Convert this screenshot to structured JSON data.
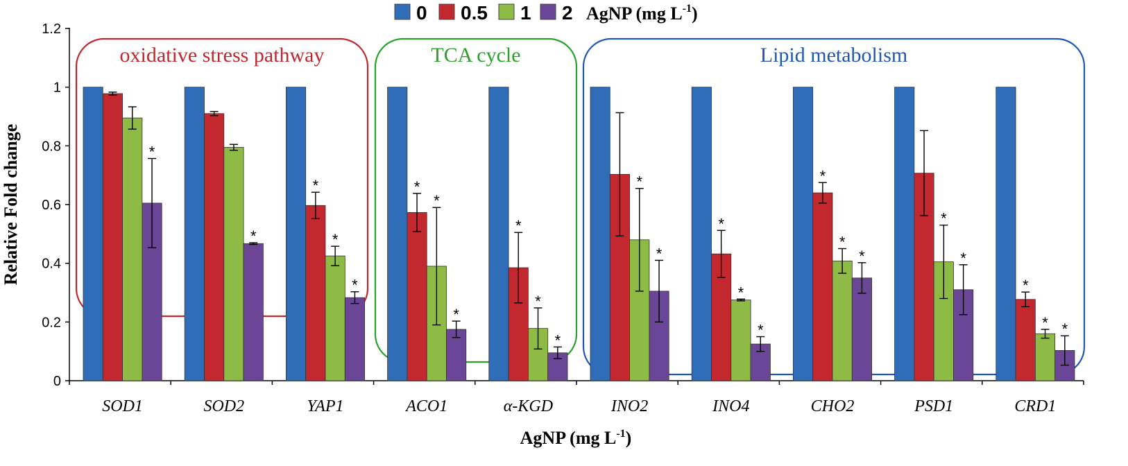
{
  "chart_data": {
    "type": "bar",
    "title": "",
    "xlabel": "AgNP (mg L-1)",
    "ylabel": "Relative Fold change",
    "ylim": [
      0,
      1.2
    ],
    "yticks": [
      "0",
      "0.2",
      "0.4",
      "0.6",
      "0.8",
      "1",
      "1.2"
    ],
    "categories": [
      "SOD1",
      "SOD2",
      "YAP1",
      "ACO1",
      "α-KGD",
      "INO2",
      "INO4",
      "CHO2",
      "PSD1",
      "CRD1"
    ],
    "legend": {
      "entries": [
        "0",
        "0.5",
        "1",
        "2"
      ],
      "unit_label": "AgNP (mg L",
      "unit_sup": "-1",
      "unit_close": ")",
      "placement": "top-center"
    },
    "series": [
      {
        "name": "0",
        "color": "#2f6db8",
        "values": [
          1,
          1,
          1,
          1,
          1,
          1,
          1,
          1,
          1,
          1
        ],
        "errors": [
          0,
          0,
          0,
          0,
          0,
          0,
          0,
          0,
          0,
          0
        ],
        "significant": [
          false,
          false,
          false,
          false,
          false,
          false,
          false,
          false,
          false,
          false
        ]
      },
      {
        "name": "0.5",
        "color": "#c3282e",
        "values": [
          0.978,
          0.91,
          0.597,
          0.573,
          0.385,
          0.703,
          0.432,
          0.64,
          0.707,
          0.277
        ],
        "errors": [
          0.005,
          0.007,
          0.045,
          0.065,
          0.12,
          0.21,
          0.08,
          0.035,
          0.145,
          0.025
        ],
        "significant": [
          false,
          false,
          true,
          true,
          true,
          false,
          true,
          true,
          false,
          true
        ]
      },
      {
        "name": "1",
        "color": "#8dbb45",
        "values": [
          0.895,
          0.795,
          0.425,
          0.39,
          0.178,
          0.48,
          0.275,
          0.408,
          0.405,
          0.16
        ],
        "errors": [
          0.038,
          0.01,
          0.033,
          0.2,
          0.07,
          0.175,
          0.003,
          0.042,
          0.125,
          0.015
        ],
        "significant": [
          false,
          false,
          true,
          true,
          true,
          true,
          true,
          true,
          true,
          true
        ]
      },
      {
        "name": "2",
        "color": "#6b4697",
        "values": [
          0.605,
          0.467,
          0.283,
          0.175,
          0.095,
          0.305,
          0.125,
          0.35,
          0.31,
          0.103
        ],
        "errors": [
          0.152,
          0.003,
          0.02,
          0.028,
          0.02,
          0.105,
          0.025,
          0.052,
          0.085,
          0.05
        ],
        "significant": [
          true,
          true,
          true,
          true,
          true,
          true,
          true,
          true,
          true,
          true
        ]
      }
    ],
    "groups": [
      {
        "label": "oxidative stress pathway",
        "color": "#c0282e",
        "first": 0,
        "last": 2
      },
      {
        "label": "TCA cycle",
        "color": "#2aa12a",
        "first": 3,
        "last": 4
      },
      {
        "label": "Lipid metabolism",
        "color": "#1f57b8",
        "first": 5,
        "last": 9
      }
    ],
    "significance_marker": "*",
    "grid": false
  }
}
